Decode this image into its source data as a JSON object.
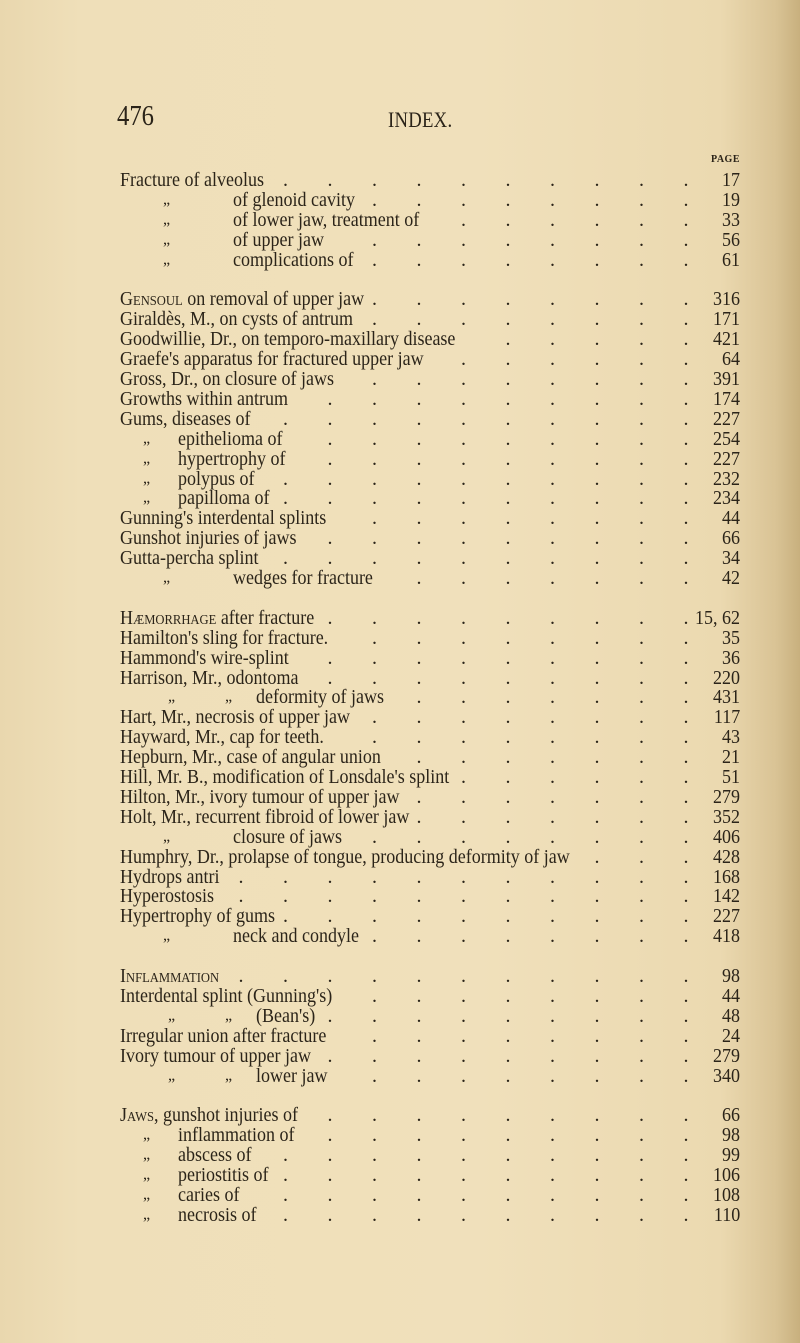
{
  "header": {
    "page_number": "476",
    "running_title": "INDEX.",
    "page_column_label": "PAGE"
  },
  "sections": [
    {
      "entries": [
        {
          "kind": "main",
          "text": "Fracture of alveolus",
          "page": "17"
        },
        {
          "kind": "sub-wide",
          "ditto": "„",
          "text": "of glenoid cavity",
          "page": "19"
        },
        {
          "kind": "sub-wide",
          "ditto": "„",
          "text": "of lower jaw, treatment of",
          "page": "33"
        },
        {
          "kind": "sub-wide",
          "ditto": "„",
          "text": "of upper jaw",
          "page": "56"
        },
        {
          "kind": "sub-wide",
          "ditto": "„",
          "text": "complications of",
          "page": "61"
        }
      ]
    },
    {
      "entries": [
        {
          "kind": "main",
          "lead": "Gensoul",
          "text": " on removal of upper jaw",
          "page": "316"
        },
        {
          "kind": "main",
          "text": "Giraldès, M., on cysts of antrum",
          "page": "171"
        },
        {
          "kind": "main",
          "text": "Goodwillie, Dr., on temporo-maxillary disease",
          "page": "421"
        },
        {
          "kind": "main",
          "text": "Graefe's apparatus for fractured upper jaw",
          "page": "64"
        },
        {
          "kind": "main",
          "text": "Gross, Dr., on closure of jaws",
          "page": "391"
        },
        {
          "kind": "main",
          "text": "Growths within antrum",
          "page": "174"
        },
        {
          "kind": "main",
          "text": "Gums, diseases of",
          "page": "227"
        },
        {
          "kind": "sub-narrow",
          "ditto": "„",
          "text": "epithelioma of",
          "page": "254"
        },
        {
          "kind": "sub-narrow",
          "ditto": "„",
          "text": "hypertrophy of",
          "page": "227"
        },
        {
          "kind": "sub-narrow",
          "ditto": "„",
          "text": "polypus of",
          "page": "232"
        },
        {
          "kind": "sub-narrow",
          "ditto": "„",
          "text": "papilloma of",
          "page": "234"
        },
        {
          "kind": "main",
          "text": "Gunning's interdental splints",
          "page": "44"
        },
        {
          "kind": "main",
          "text": "Gunshot injuries of jaws",
          "page": "66"
        },
        {
          "kind": "main",
          "text": "Gutta-percha splint",
          "page": "34"
        },
        {
          "kind": "sub-wide",
          "ditto": "„",
          "text": "wedges for fracture",
          "page": "42"
        }
      ]
    },
    {
      "entries": [
        {
          "kind": "main",
          "lead": "Hæmorrhage",
          "text": " after fracture",
          "page": "15, 62"
        },
        {
          "kind": "main",
          "text": "Hamilton's sling for fracture.",
          "page": "35"
        },
        {
          "kind": "main",
          "text": "Hammond's wire-splint",
          "page": "36"
        },
        {
          "kind": "main",
          "text": "Harrison, Mr., odontoma",
          "page": "220"
        },
        {
          "kind": "sub-double",
          "ditto": "„",
          "ditto2": "„",
          "text": "deformity of jaws",
          "page": "431"
        },
        {
          "kind": "main",
          "text": "Hart, Mr., necrosis of upper jaw",
          "page": "117"
        },
        {
          "kind": "main",
          "text": "Hayward, Mr., cap for teeth.",
          "page": "43"
        },
        {
          "kind": "main",
          "text": "Hepburn, Mr., case of angular union",
          "page": "21"
        },
        {
          "kind": "main",
          "text": "Hill, Mr. B., modification of Lonsdale's splint",
          "page": "51"
        },
        {
          "kind": "main",
          "text": "Hilton, Mr., ivory tumour of upper jaw",
          "page": "279"
        },
        {
          "kind": "main",
          "text": "Holt, Mr., recurrent fibroid of lower jaw",
          "page": "352"
        },
        {
          "kind": "sub-wide",
          "ditto": "„",
          "text": "closure of jaws",
          "page": "406"
        },
        {
          "kind": "main",
          "text": "Humphry, Dr., prolapse of tongue, producing deformity of jaw",
          "page": "428"
        },
        {
          "kind": "main",
          "text": "Hydrops antri",
          "page": "168"
        },
        {
          "kind": "main",
          "text": "Hyperostosis",
          "page": "142"
        },
        {
          "kind": "main",
          "text": "Hypertrophy of gums",
          "page": "227"
        },
        {
          "kind": "sub-wide",
          "ditto": "„",
          "text": "neck and condyle",
          "page": "418"
        }
      ]
    },
    {
      "entries": [
        {
          "kind": "main",
          "lead": "Inflammation",
          "text": "",
          "page": "98"
        },
        {
          "kind": "main",
          "text": "Interdental splint (Gunning's)",
          "page": "44"
        },
        {
          "kind": "sub-double",
          "ditto": "„",
          "ditto2": "„",
          "text": "(Bean's)",
          "page": "48"
        },
        {
          "kind": "main",
          "text": "Irregular union after fracture",
          "page": "24"
        },
        {
          "kind": "main",
          "text": "Ivory tumour of upper jaw",
          "page": "279"
        },
        {
          "kind": "sub-double",
          "ditto": "„",
          "ditto2": "„",
          "text": "lower jaw",
          "page": "340"
        }
      ]
    },
    {
      "entries": [
        {
          "kind": "main",
          "lead": "Jaws",
          "text": ", gunshot injuries of",
          "page": "66"
        },
        {
          "kind": "sub-narrow",
          "ditto": "„",
          "text": "inflammation of",
          "page": "98"
        },
        {
          "kind": "sub-narrow",
          "ditto": "„",
          "text": "abscess of",
          "page": "99"
        },
        {
          "kind": "sub-narrow",
          "ditto": "„",
          "text": "periostitis of",
          "page": "106"
        },
        {
          "kind": "sub-narrow",
          "ditto": "„",
          "text": "caries of",
          "page": "108"
        },
        {
          "kind": "sub-narrow",
          "ditto": "„",
          "text": "necrosis of",
          "page": "110"
        }
      ]
    }
  ]
}
